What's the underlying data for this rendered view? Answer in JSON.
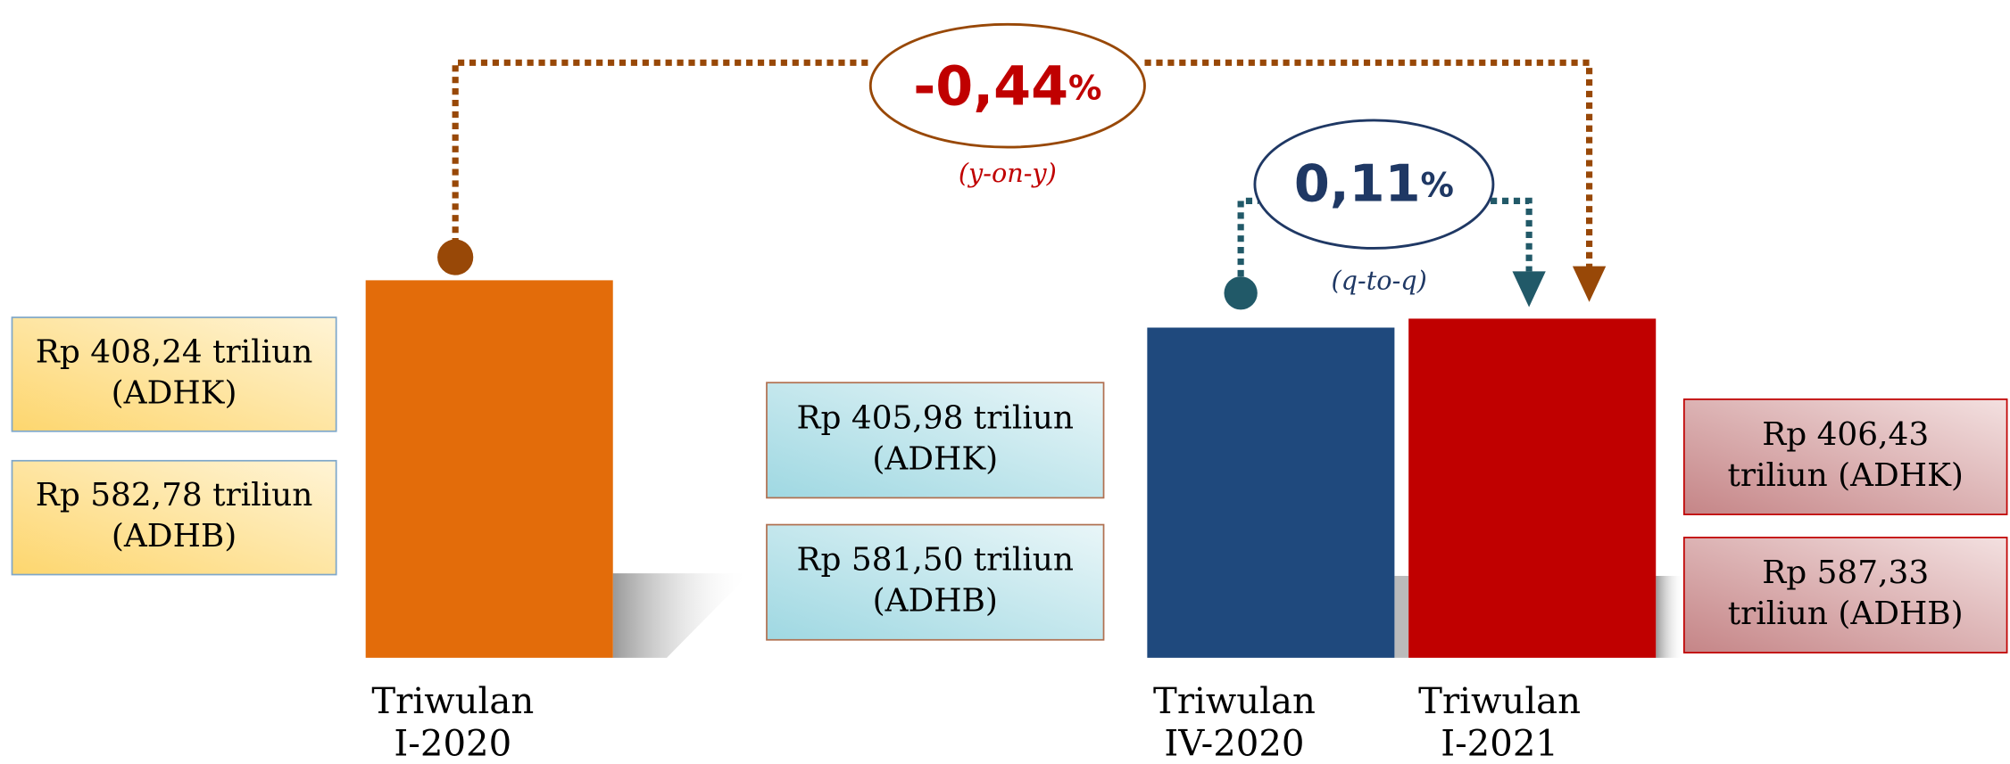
{
  "change_yoy": {
    "value": "-0,44",
    "unit": "%",
    "note": "(y-on-y)"
  },
  "change_qtq": {
    "value": "0,11",
    "unit": "%",
    "note": "(q-to-q)"
  },
  "periods": [
    {
      "label": [
        "Triwulan",
        "I-2020"
      ],
      "boxes": [
        [
          "Rp 408,24 triliun",
          "(ADHK)"
        ],
        [
          "Rp 582,78 triliun",
          "(ADHB)"
        ]
      ]
    },
    {
      "label": [
        "Triwulan",
        "IV-2020"
      ],
      "boxes": [
        [
          "Rp 405,98 triliun",
          "(ADHK)"
        ],
        [
          "Rp 581,50 triliun",
          "(ADHB)"
        ]
      ]
    },
    {
      "label": [
        "Triwulan",
        "I-2021"
      ],
      "boxes": [
        [
          "Rp 406,43",
          "triliun (ADHK)"
        ],
        [
          "Rp 587,33",
          "triliun (ADHB)"
        ]
      ]
    }
  ]
}
